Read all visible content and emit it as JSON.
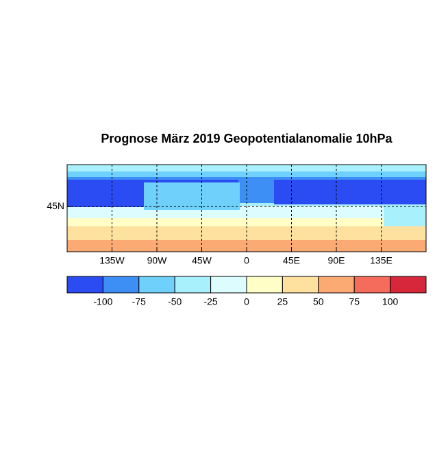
{
  "chart_data": {
    "type": "map",
    "title": "Prognose März 2019 Geopotentialanomalie 10hPa",
    "xlim": [
      -180,
      180
    ],
    "ylim": [
      0,
      87
    ],
    "xticks": [
      {
        "value": -135,
        "label": "135W"
      },
      {
        "value": -90,
        "label": "90W"
      },
      {
        "value": -45,
        "label": "45W"
      },
      0,
      {
        "value": 45,
        "label": "45E"
      },
      {
        "value": 90,
        "label": "90E"
      },
      {
        "value": 135,
        "label": "135E"
      }
    ],
    "yticks": [
      {
        "value": 45,
        "label": "45N"
      }
    ],
    "grid": true,
    "colorbar": {
      "ticks": [
        -100,
        -75,
        -50,
        -25,
        0,
        25,
        50,
        75,
        100
      ],
      "colors": [
        "#2b4cf2",
        "#3d8ff5",
        "#6fd1fb",
        "#a8f0fb",
        "#dcfcfd",
        "#fefec6",
        "#fee19e",
        "#fbaa74",
        "#f56c5c",
        "#d7283b"
      ]
    }
  }
}
